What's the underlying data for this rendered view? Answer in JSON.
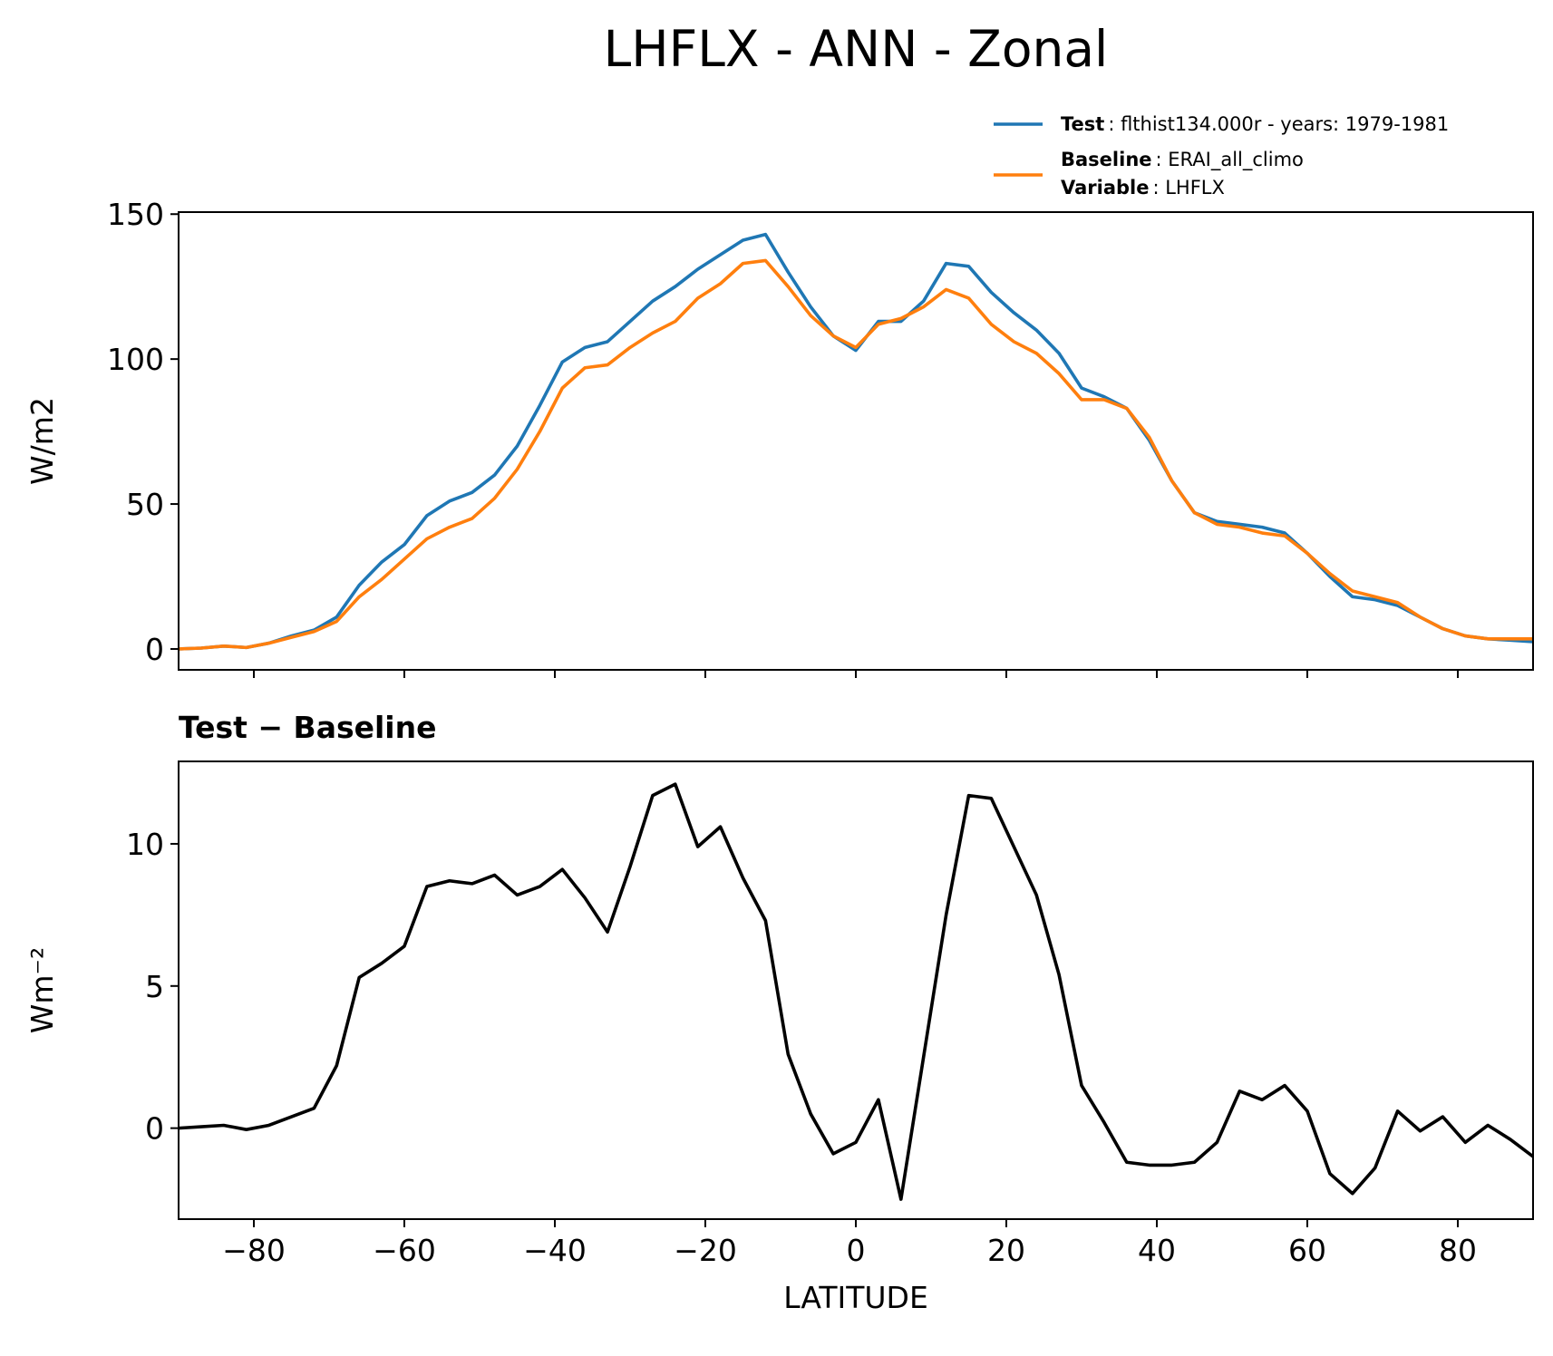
{
  "title": "LHFLX - ANN - Zonal",
  "chart_data": [
    {
      "type": "line",
      "ylabel": "W/m2",
      "x": [
        -90,
        -87,
        -84,
        -81,
        -78,
        -75,
        -72,
        -69,
        -66,
        -63,
        -60,
        -57,
        -54,
        -51,
        -48,
        -45,
        -42,
        -39,
        -36,
        -33,
        -30,
        -27,
        -24,
        -21,
        -18,
        -15,
        -12,
        -9,
        -6,
        -3,
        0,
        3,
        6,
        9,
        12,
        15,
        18,
        21,
        24,
        27,
        30,
        33,
        36,
        39,
        42,
        45,
        48,
        51,
        54,
        57,
        60,
        63,
        66,
        69,
        72,
        75,
        78,
        81,
        84,
        87,
        90
      ],
      "series": [
        {
          "name": "Test",
          "detail": ": flthist134.000r - years: 1979-1981",
          "color": "#1f77b4",
          "values": [
            0,
            0.3,
            1,
            0.5,
            2,
            4.5,
            6.5,
            11,
            22,
            30,
            36,
            46,
            51,
            54,
            60,
            70,
            84,
            99,
            104,
            106,
            113,
            120,
            125,
            131,
            136,
            141,
            143,
            130,
            118,
            108,
            103,
            113,
            113,
            120,
            133,
            132,
            123,
            116,
            110,
            102,
            90,
            87,
            83,
            72,
            58,
            47,
            44,
            43,
            42,
            40,
            33,
            25,
            18,
            17,
            15,
            11,
            7,
            4.5,
            3.5,
            3,
            2.5
          ]
        },
        {
          "name": "Baseline",
          "detail": ": ERAI_all_climo",
          "color": "#ff7f0e",
          "values": [
            0,
            0.3,
            1,
            0.5,
            2,
            4,
            6,
            9.5,
            18,
            24,
            31,
            38,
            42,
            45,
            52,
            62,
            75,
            90,
            97,
            98,
            104,
            109,
            113,
            121,
            126,
            133,
            134,
            125,
            115,
            108,
            104,
            112,
            114,
            118,
            124,
            121,
            112,
            106,
            102,
            95,
            86,
            86,
            83,
            73,
            58,
            47,
            43,
            42,
            40,
            39,
            33,
            26,
            20,
            18,
            16,
            11,
            7,
            4.5,
            3.5,
            3.5,
            3.5
          ]
        }
      ],
      "legend_extra": {
        "name": "Variable",
        "detail": ": LHFLX"
      },
      "xlim": [
        -90,
        90
      ],
      "xticks": [
        -80,
        -60,
        -40,
        -20,
        0,
        20,
        40,
        60,
        80
      ],
      "xtick_labels": false,
      "ylim": [
        -7.2,
        150.7
      ],
      "yticks": [
        0,
        50,
        100,
        150
      ]
    },
    {
      "type": "line",
      "title": "Test − Baseline",
      "xlabel": "LATITUDE",
      "ylabel": "Wm⁻²",
      "x": [
        -90,
        -87,
        -84,
        -81,
        -78,
        -75,
        -72,
        -69,
        -66,
        -63,
        -60,
        -57,
        -54,
        -51,
        -48,
        -45,
        -42,
        -39,
        -36,
        -33,
        -30,
        -27,
        -24,
        -21,
        -18,
        -15,
        -12,
        -9,
        -6,
        -3,
        0,
        3,
        6,
        9,
        12,
        15,
        18,
        21,
        24,
        27,
        30,
        33,
        36,
        39,
        42,
        45,
        48,
        51,
        54,
        57,
        60,
        63,
        66,
        69,
        72,
        75,
        78,
        81,
        84,
        87,
        90
      ],
      "series": [
        {
          "color": "#000000",
          "values": [
            0,
            0.05,
            0.1,
            -0.05,
            0.1,
            0.4,
            0.7,
            2.2,
            5.3,
            5.8,
            6.4,
            8.5,
            8.7,
            8.6,
            8.9,
            8.2,
            8.5,
            9.1,
            8.1,
            6.9,
            9.2,
            11.7,
            12.1,
            9.9,
            10.6,
            8.8,
            7.3,
            2.6,
            0.5,
            -0.9,
            -0.5,
            1.0,
            -2.5,
            2.5,
            7.5,
            11.7,
            11.6,
            9.9,
            8.2,
            5.4,
            1.5,
            0.2,
            -1.2,
            -1.3,
            -1.3,
            -1.2,
            -0.5,
            1.3,
            1.0,
            1.5,
            0.6,
            -1.6,
            -2.3,
            -1.4,
            0.6,
            -0.1,
            0.4,
            -0.5,
            0.1,
            -0.4,
            -1.0
          ]
        }
      ],
      "xlim": [
        -90,
        90
      ],
      "xticks": [
        {
          "value": -80,
          "label": "−80"
        },
        {
          "value": -60,
          "label": "−60"
        },
        {
          "value": -40,
          "label": "−40"
        },
        {
          "value": -20,
          "label": "−20"
        },
        0,
        20,
        40,
        60,
        80
      ],
      "ylim": [
        -3.2,
        12.9
      ],
      "yticks": [
        0,
        5,
        10
      ]
    }
  ]
}
